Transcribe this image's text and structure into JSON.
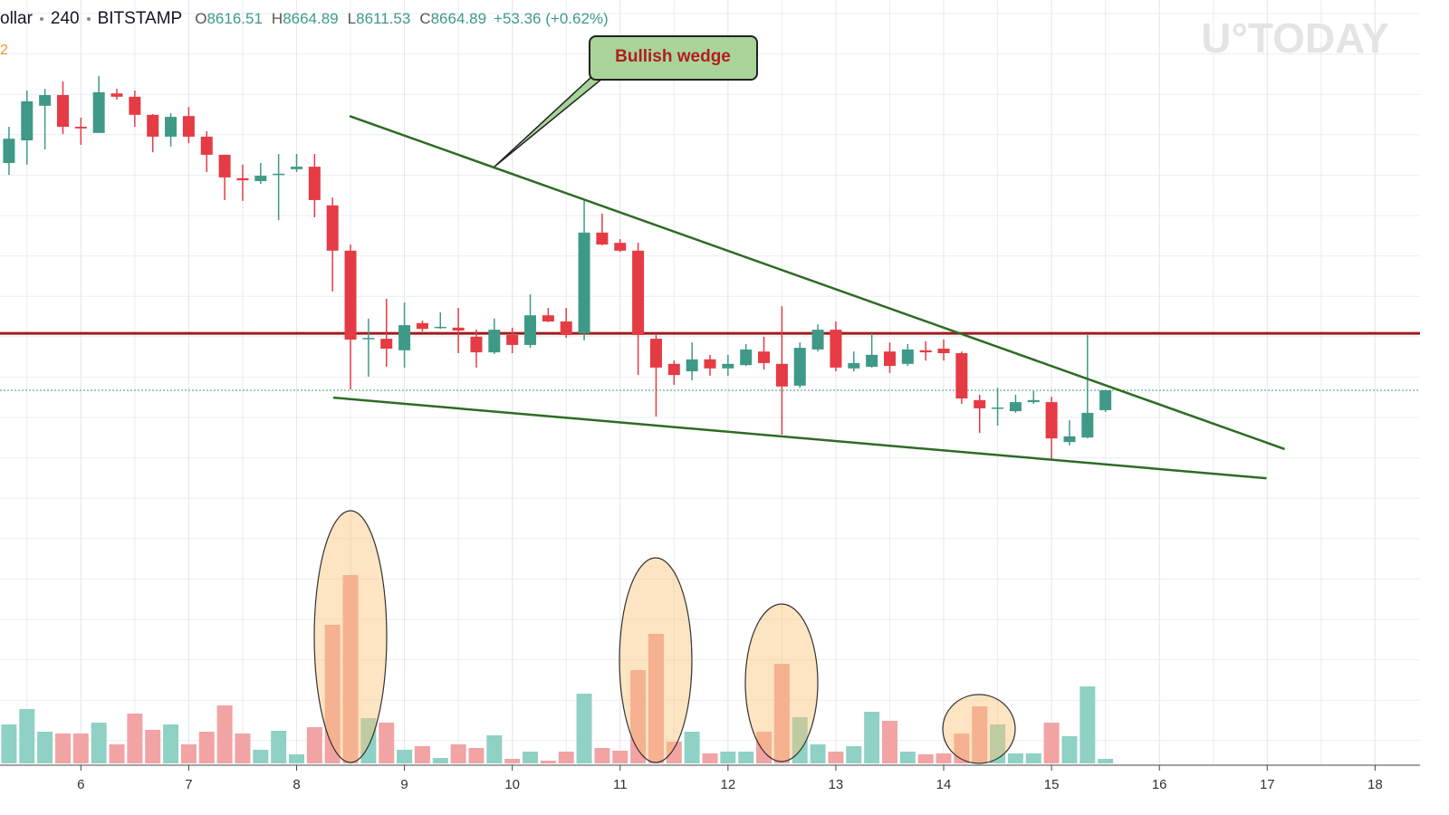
{
  "chart_data": {
    "type": "candlestick",
    "header": {
      "symbol": "ollar",
      "interval": "240",
      "exchange": "BITSTAMP",
      "fields": [
        {
          "name": "O",
          "value": 8616.51
        },
        {
          "name": "H",
          "value": 8664.89
        },
        {
          "name": "L",
          "value": 8611.53
        },
        {
          "name": "C",
          "value": 8664.89
        }
      ],
      "change": "+53.36 (+0.62%)"
    },
    "indicator_label": "2",
    "watermark": "U°TODAY",
    "annotation": "Bullish wedge",
    "open": [
      9217,
      9272,
      9356,
      9382,
      9305,
      9290,
      9386,
      9378,
      9334,
      9281,
      9331,
      9281,
      9237,
      9180,
      9173,
      9188,
      9202,
      9208,
      9114,
      9004,
      8790,
      8790,
      8762,
      8828,
      8817,
      8817,
      8795,
      8757,
      8799,
      8775,
      8847,
      8832,
      8803,
      9048,
      9023,
      9004,
      8790,
      8729,
      8711,
      8740,
      8718,
      8726,
      8759,
      8729,
      8676,
      8764,
      8812,
      8718,
      8722,
      8759,
      8729,
      8762,
      8766,
      8755,
      8641,
      8621,
      8614,
      8636,
      8636,
      8539,
      8550,
      8616.51
    ],
    "high": [
      9305,
      9393,
      9397,
      9415,
      9327,
      9428,
      9397,
      9393,
      9336,
      9338,
      9353,
      9294,
      9237,
      9213,
      9217,
      9239,
      9239,
      9239,
      9133,
      9019,
      8839,
      8887,
      8878,
      8834,
      8854,
      8865,
      8812,
      8839,
      8817,
      8898,
      8865,
      8865,
      9129,
      9094,
      9032,
      9023,
      8799,
      8737,
      8781,
      8751,
      8751,
      8777,
      8795,
      8869,
      8781,
      8825,
      8832,
      8759,
      8803,
      8781,
      8777,
      8784,
      8788,
      8759,
      8654,
      8671,
      8654,
      8663,
      8649,
      8592,
      8799,
      8664.89
    ],
    "low": [
      9188,
      9213,
      9250,
      9287,
      9261,
      9290,
      9371,
      9305,
      9243,
      9257,
      9265,
      9195,
      9127,
      9125,
      9166,
      9078,
      9195,
      9085,
      8905,
      8667,
      8698,
      8722,
      8720,
      8808,
      8814,
      8755,
      8720,
      8753,
      8755,
      8768,
      8830,
      8792,
      8786,
      9017,
      9001,
      8702,
      8601,
      8678,
      8689,
      8700,
      8700,
      8724,
      8715,
      8557,
      8671,
      8759,
      8711,
      8711,
      8720,
      8707,
      8724,
      8737,
      8737,
      8632,
      8561,
      8579,
      8610,
      8632,
      8495,
      8531,
      8548,
      8611.53
    ],
    "close": [
      9276,
      9367,
      9382,
      9305,
      9301,
      9389,
      9378,
      9334,
      9281,
      9329,
      9281,
      9237,
      9182,
      9175,
      9186,
      9191,
      9208,
      9127,
      9004,
      8788,
      8792,
      8766,
      8823,
      8814,
      8819,
      8810,
      8757,
      8812,
      8775,
      8847,
      8832,
      8799,
      9048,
      9019,
      9004,
      8799,
      8720,
      8702,
      8740,
      8718,
      8729,
      8764,
      8731,
      8674,
      8768,
      8812,
      8720,
      8731,
      8751,
      8724,
      8764,
      8757,
      8755,
      8645,
      8621,
      8623,
      8636,
      8641,
      8548,
      8553,
      8610,
      8664.89
    ],
    "volume": [
      43,
      60,
      35,
      33,
      33,
      45,
      21,
      55,
      37,
      43,
      21,
      35,
      64,
      33,
      15,
      36,
      10,
      40,
      153,
      208,
      50,
      45,
      15,
      19,
      6,
      21,
      17,
      31,
      5,
      13,
      3,
      13,
      77,
      17,
      14,
      103,
      143,
      24,
      35,
      11,
      13,
      13,
      35,
      110,
      51,
      21,
      13,
      19,
      57,
      47,
      13,
      10,
      11,
      33,
      63,
      43,
      11,
      11,
      45,
      30,
      85,
      5
    ],
    "up_color": "#3e9a86",
    "down_color": "#e53b44",
    "volume_up_color": "#8fd1c4",
    "volume_down_color": "#f2a3a4",
    "xlim": [
      -0.5,
      78.5
    ],
    "ylim": [
      8403,
      9613
    ],
    "vlim": [
      0,
      250
    ],
    "xticks": [
      {
        "value": 4,
        "label": "6"
      },
      {
        "value": 10,
        "label": "7"
      },
      {
        "value": 16,
        "label": "8"
      },
      {
        "value": 22,
        "label": "9"
      },
      {
        "value": 28,
        "label": "10"
      },
      {
        "value": 34,
        "label": "11"
      },
      {
        "value": 40,
        "label": "12"
      },
      {
        "value": 46,
        "label": "13"
      },
      {
        "value": 52,
        "label": "14"
      },
      {
        "value": 58,
        "label": "15"
      },
      {
        "value": 64,
        "label": "16"
      },
      {
        "value": 70,
        "label": "17"
      },
      {
        "value": 76,
        "label": "18"
      }
    ],
    "grid": true,
    "levels": [
      {
        "value": 8803,
        "color": "#a01c1c"
      }
    ],
    "last_price_line": true,
    "trendlines": [
      {
        "x": [
          18.95,
          70.97
        ],
        "y": [
          9331,
          8522
        ],
        "color": "#2e6b24"
      },
      {
        "x": [
          18.04,
          69.96
        ],
        "y": [
          8647,
          8451
        ],
        "color": "#2e6b24"
      }
    ]
  }
}
